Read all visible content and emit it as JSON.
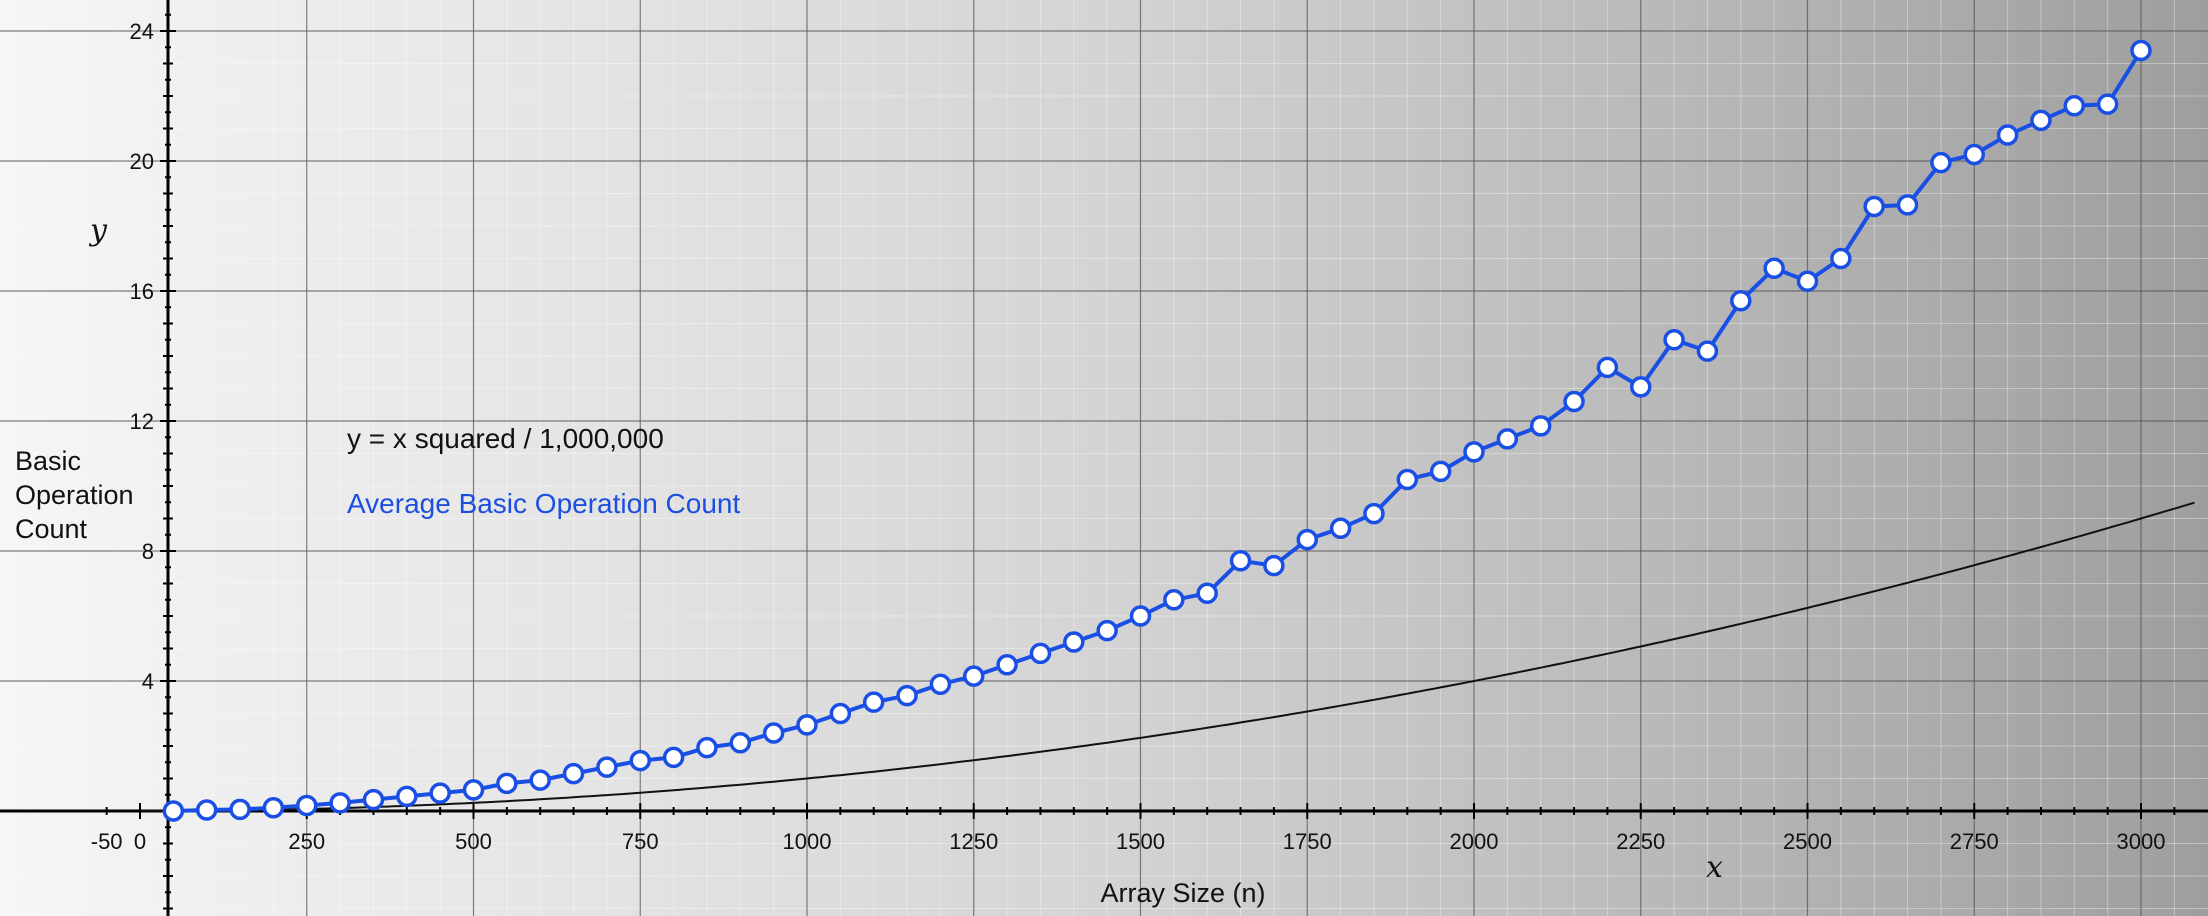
{
  "chart_data": {
    "type": "line",
    "xlabel": "Array Size (n)",
    "ylabel": "Basic Operation Count",
    "ylabel_lines": [
      "Basic",
      "Operation",
      "Count"
    ],
    "x_axis_var": "x",
    "y_axis_var": "y",
    "xlim": [
      -50,
      3050
    ],
    "ylim": [
      -3,
      24.5
    ],
    "x_major_ticks": [
      -50,
      0,
      250,
      500,
      750,
      1000,
      1250,
      1500,
      1750,
      2000,
      2250,
      2500,
      2750,
      3000
    ],
    "y_major_ticks": [
      4,
      8,
      12,
      16,
      20,
      24
    ],
    "grid": true,
    "legend_placement": "left-middle",
    "series": [
      {
        "name": "Average Basic Operation Count",
        "color": "#1a4fe6",
        "marker": "open-circle",
        "x": [
          50,
          100,
          150,
          200,
          250,
          300,
          350,
          400,
          450,
          500,
          550,
          600,
          650,
          700,
          750,
          800,
          850,
          900,
          950,
          1000,
          1050,
          1100,
          1150,
          1200,
          1250,
          1300,
          1350,
          1400,
          1450,
          1500,
          1550,
          1600,
          1650,
          1700,
          1750,
          1800,
          1850,
          1900,
          1950,
          2000,
          2050,
          2100,
          2150,
          2200,
          2250,
          2300,
          2350,
          2400,
          2450,
          2500,
          2550,
          2600,
          2650,
          2700,
          2750,
          2800,
          2850,
          2900,
          2950,
          3000
        ],
        "values": [
          0.0,
          0.03,
          0.05,
          0.1,
          0.17,
          0.25,
          0.35,
          0.45,
          0.55,
          0.65,
          0.85,
          0.95,
          1.15,
          1.35,
          1.55,
          1.65,
          1.95,
          2.1,
          2.4,
          2.65,
          3.0,
          3.35,
          3.55,
          3.9,
          4.15,
          4.5,
          4.85,
          5.2,
          5.55,
          6.0,
          6.5,
          6.7,
          7.7,
          7.55,
          8.35,
          8.7,
          9.15,
          10.2,
          10.45,
          11.05,
          11.45,
          11.85,
          12.6,
          13.65,
          13.05,
          14.5,
          14.15,
          15.7,
          16.7,
          16.3,
          17.0,
          18.6,
          18.65,
          19.95,
          20.2,
          20.8,
          21.25,
          21.7,
          21.75,
          23.4
        ]
      },
      {
        "name": "y = x squared / 1,000,000",
        "color": "#111111",
        "marker": "none",
        "function": "x^2/1000000",
        "x": [
          0,
          250,
          500,
          750,
          1000,
          1250,
          1500,
          1750,
          2000,
          2250,
          2500,
          2750,
          3000,
          3050
        ],
        "values": [
          0,
          0.0625,
          0.25,
          0.5625,
          1.0,
          1.5625,
          2.25,
          3.0625,
          4.0,
          5.0625,
          6.25,
          7.5625,
          9.0,
          9.3025
        ]
      }
    ]
  }
}
